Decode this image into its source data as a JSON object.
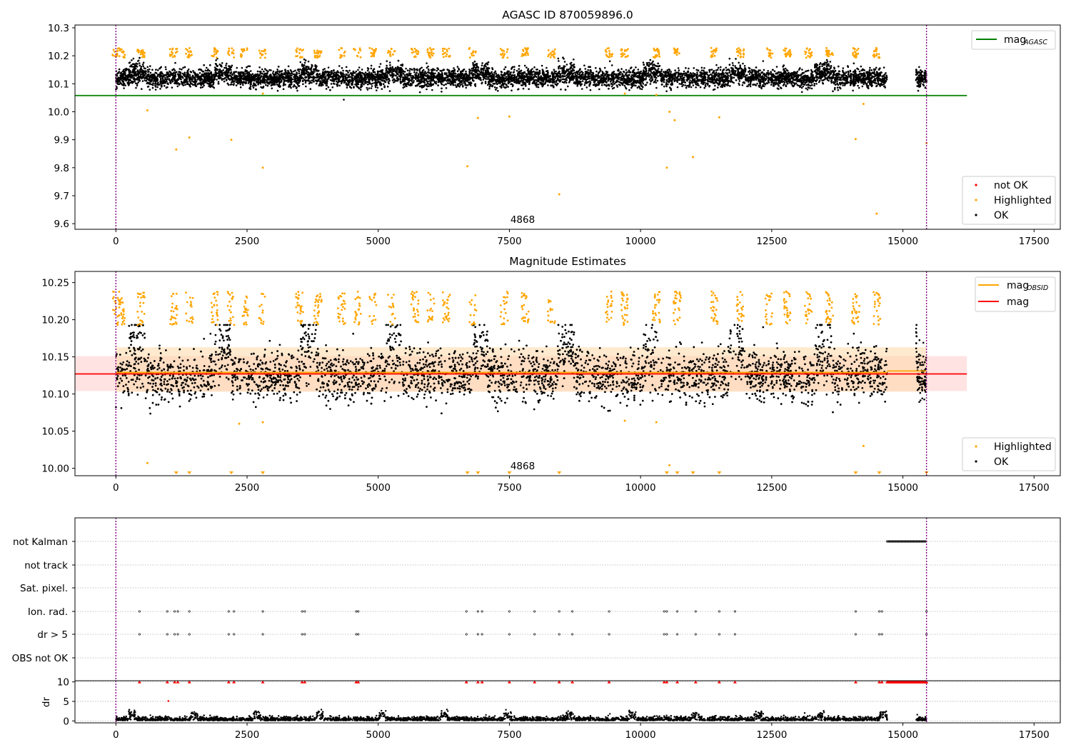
{
  "figure": {
    "top_title": "AGASC ID 870059896.0",
    "middle_title": "Magnitude Estimates"
  },
  "colors": {
    "ok": "#000000",
    "highlighted": "#ffa500",
    "not_ok": "#ff0000",
    "agasc_line": "#008000",
    "mag_line": "#ff0000",
    "mag_obsid_line": "#ffa500",
    "obsid_boundary": "#800080",
    "grid": "#b0b0b0"
  },
  "panels": {
    "top": {
      "annotation": "4868",
      "legend_lines": [
        {
          "label": "mag",
          "subscript": "AGASC",
          "color": "#008000"
        }
      ],
      "legend_points": [
        {
          "label": "not OK",
          "color": "#ff0000"
        },
        {
          "label": "Highlighted",
          "color": "#ffa500"
        },
        {
          "label": "OK",
          "color": "#000000"
        }
      ]
    },
    "middle": {
      "annotation": "4868",
      "legend_lines": [
        {
          "label": "mag",
          "subscript": "OBSID",
          "color": "#ffa500"
        },
        {
          "label": "mag",
          "subscript": "",
          "color": "#ff0000"
        }
      ],
      "legend_points": [
        {
          "label": "Highlighted",
          "color": "#ffa500"
        },
        {
          "label": "OK",
          "color": "#000000"
        }
      ]
    },
    "flags": {
      "rows": [
        "not Kalman",
        "not track",
        "Sat. pixel.",
        "Ion. rad.",
        "dr > 5",
        "OBS not OK"
      ]
    },
    "dr": {
      "ylabel": "dr"
    }
  },
  "chart_data": [
    {
      "type": "scatter",
      "title": "AGASC ID 870059896.0",
      "xlim": [
        -780,
        18000
      ],
      "ylim": [
        9.58,
        10.31
      ],
      "xticks": [
        0,
        2500,
        5000,
        7500,
        10000,
        12500,
        15000,
        17500
      ],
      "xticklabels": [
        "0",
        "2500",
        "5000",
        "7500",
        "10000",
        "12500",
        "15000",
        "17500"
      ],
      "yticks": [
        9.6,
        9.7,
        9.8,
        9.9,
        10.0,
        10.1,
        10.2,
        10.3
      ],
      "yticklabels": [
        "9.6",
        "9.7",
        "9.8",
        "9.9",
        "10.0",
        "10.1",
        "10.2",
        "10.3"
      ],
      "obsid_boundaries": [
        0,
        15450
      ],
      "mag_agasc": 10.058,
      "mag_agasc_x_range": [
        -780,
        16220
      ],
      "ok_band": {
        "center": 10.12,
        "spread": 0.045,
        "x_segments": [
          [
            0,
            14700
          ],
          [
            15250,
            15450
          ]
        ]
      },
      "highlighted_clusters_x": [
        0,
        100,
        480,
        1100,
        1400,
        1880,
        2200,
        2450,
        2800,
        3500,
        3850,
        4300,
        4600,
        4900,
        5250,
        5700,
        6000,
        6300,
        6800,
        7400,
        7800,
        8300,
        9400,
        9700,
        10300,
        10700,
        11400,
        11900,
        12450,
        12800,
        13200,
        13600,
        14100,
        14500
      ],
      "highlighted_outliers": [
        [
          600,
          10.005
        ],
        [
          1150,
          9.865
        ],
        [
          1400,
          9.908
        ],
        [
          2200,
          9.9
        ],
        [
          2800,
          9.8
        ],
        [
          2800,
          10.065
        ],
        [
          6700,
          9.805
        ],
        [
          6900,
          9.978
        ],
        [
          7500,
          9.983
        ],
        [
          8450,
          9.705
        ],
        [
          10500,
          9.8
        ],
        [
          10550,
          10.0
        ],
        [
          10650,
          9.97
        ],
        [
          11000,
          9.838
        ],
        [
          11500,
          9.98
        ],
        [
          14100,
          9.902
        ],
        [
          14250,
          10.028
        ],
        [
          14500,
          9.636
        ],
        [
          15450,
          9.888
        ],
        [
          9700,
          10.065
        ],
        [
          10300,
          10.06
        ]
      ],
      "annotation": {
        "text": "4868",
        "x": 7700,
        "y": 9.6
      },
      "legend": [
        "mag_AGASC",
        "not OK",
        "Highlighted",
        "OK"
      ]
    },
    {
      "type": "scatter",
      "title": "Magnitude Estimates",
      "xlim": [
        -780,
        18000
      ],
      "ylim": [
        9.99,
        10.265
      ],
      "xticks": [
        0,
        2500,
        5000,
        7500,
        10000,
        12500,
        15000,
        17500
      ],
      "yticks": [
        10.0,
        10.05,
        10.1,
        10.15,
        10.2,
        10.25
      ],
      "yticklabels": [
        "10.00",
        "10.05",
        "10.10",
        "10.15",
        "10.20",
        "10.25"
      ],
      "obsid_boundaries": [
        0,
        15450
      ],
      "mag": 10.127,
      "mag_band": [
        10.104,
        10.151
      ],
      "mag_obsid": {
        "value": 10.129,
        "band": [
          10.103,
          10.163
        ],
        "x_range": [
          0,
          14700
        ]
      },
      "mag_obsid_2": {
        "value": 10.131,
        "x_range": [
          14700,
          15450
        ]
      },
      "ok_band": {
        "center": 10.125,
        "spread": 0.045,
        "x_segments": [
          [
            0,
            14700
          ],
          [
            15250,
            15450
          ]
        ]
      },
      "low_clipped_markers_x": [
        1150,
        1400,
        2200,
        2800,
        6700,
        6900,
        7500,
        8450,
        10500,
        10700,
        11000,
        11500,
        14100,
        14550,
        15450
      ],
      "annotation": {
        "text": "4868",
        "x": 7700,
        "y": 10.0
      },
      "legend": [
        "mag_OBSID",
        "mag",
        "Highlighted",
        "OK"
      ]
    },
    {
      "type": "scatter",
      "title": "",
      "categories": [
        "not Kalman",
        "not track",
        "Sat. pixel.",
        "Ion. rad.",
        "dr > 5",
        "OBS not OK"
      ],
      "not_kalman_x_range": [
        14700,
        15450
      ],
      "ion_rad_x": [
        450,
        980,
        1120,
        1180,
        1400,
        2150,
        2250,
        2800,
        3550,
        3600,
        4580,
        4620,
        6680,
        6900,
        6980,
        7500,
        7980,
        8450,
        8700,
        9400,
        10450,
        10500,
        10700,
        11050,
        11500,
        11800,
        14100,
        14550,
        14600,
        15450
      ],
      "dr_gt5_x": [
        450,
        980,
        1120,
        1180,
        1400,
        2150,
        2250,
        2800,
        3550,
        3600,
        4580,
        4620,
        6680,
        6900,
        6980,
        7500,
        7980,
        8450,
        8700,
        9400,
        10450,
        10500,
        10700,
        11050,
        11500,
        11800,
        14100,
        14550,
        14600,
        15450
      ]
    },
    {
      "type": "scatter",
      "title": "",
      "ylabel": "dr",
      "xlim": [
        -780,
        18000
      ],
      "ylim": [
        -0.5,
        10.3
      ],
      "xticks": [
        0,
        2500,
        5000,
        7500,
        10000,
        12500,
        15000,
        17500
      ],
      "yticks": [
        0,
        5,
        10
      ],
      "yticklabels": [
        "0",
        "5",
        "10"
      ],
      "not_ok_capped_x_range": [
        14700,
        15450
      ],
      "not_ok_capped_x": [
        450,
        980,
        1120,
        1180,
        1400,
        2150,
        2250,
        2800,
        3550,
        3600,
        4580,
        4620,
        6680,
        6900,
        6980,
        7500,
        7980,
        8450,
        8700,
        9400,
        10450,
        10500,
        10700,
        11050,
        11500,
        11800,
        14100,
        14550,
        14600,
        15450
      ],
      "not_ok_points": [
        [
          1000,
          5.1
        ]
      ]
    }
  ]
}
